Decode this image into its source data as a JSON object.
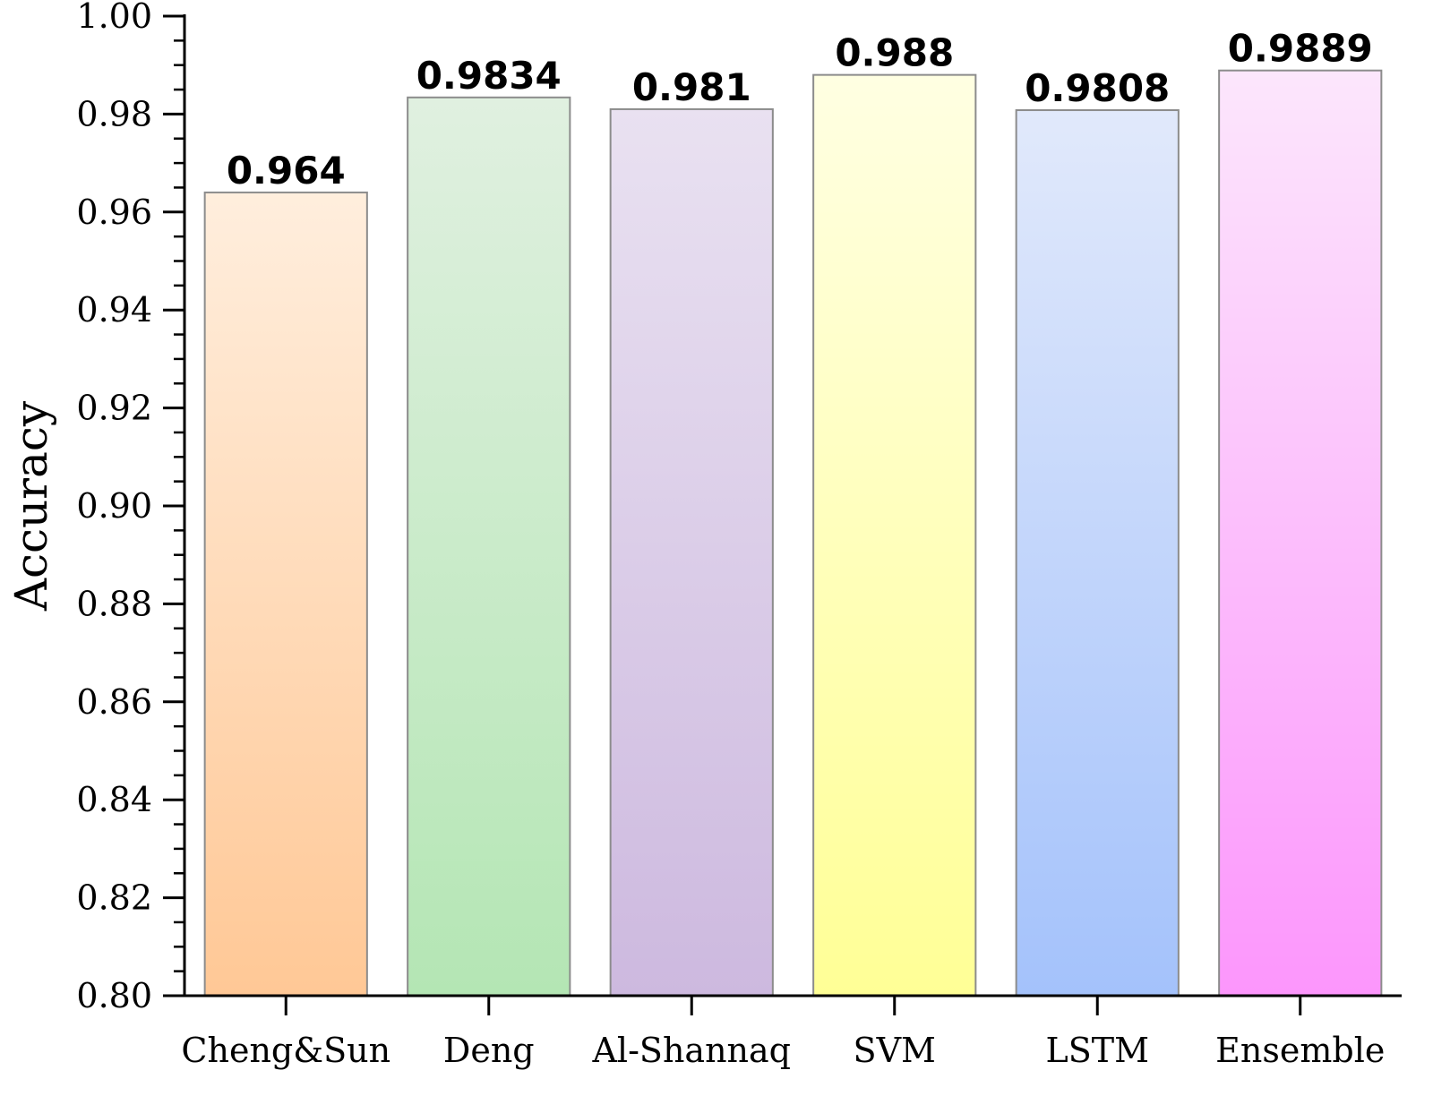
{
  "chart_data": {
    "type": "bar",
    "title": "",
    "xlabel": "",
    "ylabel": "Accuracy",
    "ylim": [
      0.8,
      1.0
    ],
    "yticks": [
      "0.80",
      "0.82",
      "0.84",
      "0.86",
      "0.88",
      "0.90",
      "0.92",
      "0.94",
      "0.96",
      "0.98",
      "1.00"
    ],
    "grid": false,
    "legend": "none",
    "categories": [
      "Cheng&Sun",
      "Deng",
      "Al-Shannaq",
      "SVM",
      "LSTM",
      "Ensemble"
    ],
    "values": [
      0.964,
      0.9834,
      0.981,
      0.988,
      0.9808,
      0.9889
    ],
    "value_labels": [
      "0.964",
      "0.9834",
      "0.981",
      "0.988",
      "0.9808",
      "0.9889"
    ],
    "bar_colors": [
      {
        "top": "#FFEEDD",
        "bottom": "#FFC896"
      },
      {
        "top": "#E0F0E0",
        "bottom": "#B4E6B4"
      },
      {
        "top": "#E9E1F1",
        "bottom": "#CDB9DF"
      },
      {
        "top": "#FFFFE2",
        "bottom": "#FFFF96"
      },
      {
        "top": "#E1E9FB",
        "bottom": "#A4C2FB"
      },
      {
        "top": "#FCE6FC",
        "bottom": "#FC96FC"
      }
    ],
    "bar_edge_color": "#8c8c8c"
  }
}
